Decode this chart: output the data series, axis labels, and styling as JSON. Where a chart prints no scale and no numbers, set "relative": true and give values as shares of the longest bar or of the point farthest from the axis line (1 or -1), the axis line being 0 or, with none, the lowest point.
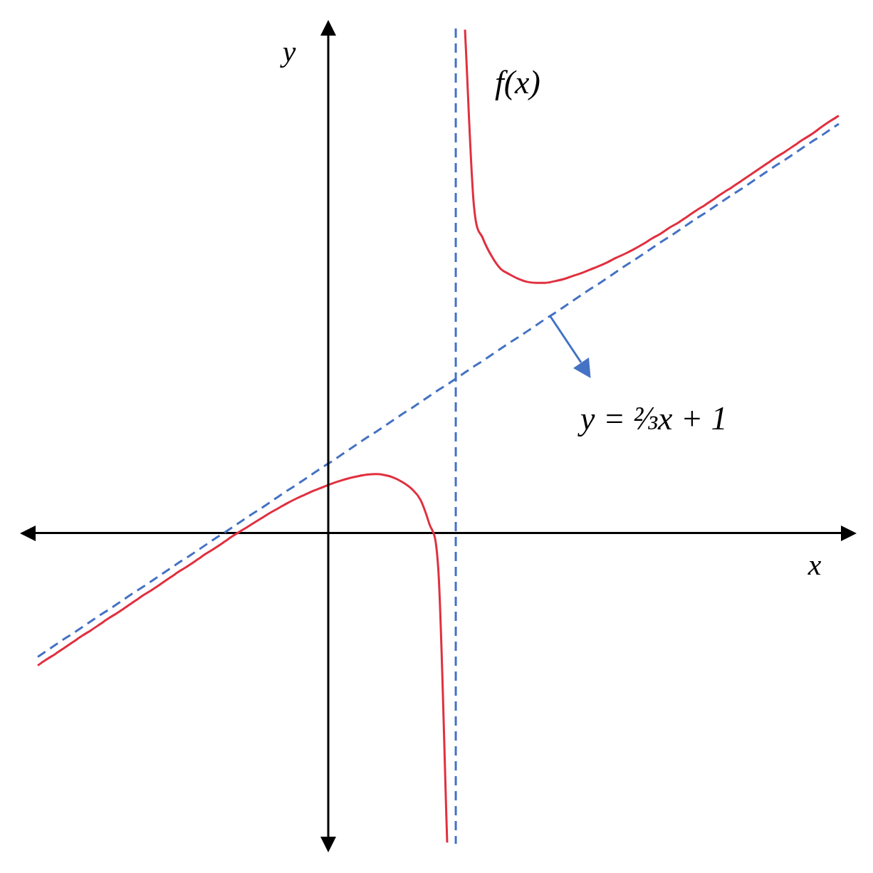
{
  "chart_data": {
    "type": "line",
    "relative": true,
    "xlabel": "x",
    "ylabel": "y",
    "legend": false,
    "tick_labels": false,
    "marker": "none",
    "annotations": [
      "y = ⅔x + 1"
    ],
    "categories": [
      null,
      null,
      null,
      null,
      null,
      null,
      null,
      null,
      null,
      null,
      null,
      null,
      null,
      null,
      null,
      null,
      null,
      null,
      null,
      null,
      null,
      null,
      null,
      null,
      null,
      null,
      null,
      null,
      null,
      null,
      null,
      null,
      null,
      null,
      null,
      null,
      null,
      null,
      null,
      null,
      null,
      null,
      null,
      null,
      null,
      null,
      null,
      null,
      null,
      null,
      null,
      null,
      null,
      null,
      null,
      null,
      null,
      null,
      null,
      null,
      null,
      null,
      null,
      null,
      null,
      null,
      null,
      null,
      null,
      null,
      null,
      null,
      null,
      null,
      null,
      null,
      null,
      null,
      null,
      null,
      null,
      null,
      null,
      null,
      null,
      null,
      null,
      null,
      null,
      null,
      null,
      null,
      null,
      null,
      null
    ],
    "series": [
      {
        "name": "f(x)",
        "color": "#e0303f",
        "values": [
          null,
          null,
          -0.263,
          -0.251,
          -0.24,
          -0.228,
          -0.216,
          -0.204,
          -0.193,
          -0.181,
          -0.169,
          -0.158,
          -0.146,
          -0.134,
          -0.122,
          -0.111,
          -0.099,
          -0.087,
          -0.075,
          -0.064,
          -0.052,
          -0.04,
          -0.029,
          -0.017,
          -0.005,
          0.006,
          0.017,
          0.028,
          0.039,
          0.049,
          0.059,
          0.068,
          0.076,
          0.084,
          0.091,
          0.098,
          0.104,
          0.109,
          0.113,
          0.116,
          0.117,
          0.115,
          0.11,
          0.101,
          0.088,
          0.066,
          0.018,
          -0.071,
          -0.615,
          null,
          1.0,
          0.651,
          0.586,
          0.55,
          0.525,
          0.514,
          0.505,
          0.499,
          0.497,
          0.497,
          0.5,
          0.504,
          0.51,
          0.516,
          0.523,
          0.53,
          0.538,
          0.547,
          0.555,
          0.564,
          0.574,
          0.585,
          0.595,
          0.607,
          0.617,
          0.629,
          0.641,
          0.652,
          0.664,
          0.676,
          0.687,
          0.699,
          0.711,
          0.723,
          0.735,
          0.747,
          0.758,
          0.77,
          0.782,
          0.793,
          0.806,
          0.818,
          0.829,
          null,
          null
        ]
      },
      {
        "color": "#4472c4",
        "line_style": "dashed",
        "values": [
          null,
          null,
          -0.246,
          -0.234,
          -0.222,
          -0.21,
          -0.199,
          -0.187,
          -0.175,
          -0.163,
          -0.152,
          -0.14,
          -0.128,
          -0.116,
          -0.105,
          -0.093,
          -0.081,
          -0.069,
          -0.057,
          -0.046,
          -0.034,
          -0.022,
          -0.01,
          0.001,
          0.013,
          0.025,
          0.037,
          0.048,
          0.06,
          0.072,
          0.084,
          0.095,
          0.107,
          0.119,
          0.131,
          0.142,
          0.154,
          0.166,
          0.178,
          0.19,
          0.201,
          0.213,
          0.225,
          0.237,
          0.248,
          0.26,
          0.272,
          0.284,
          0.295,
          0.307,
          0.319,
          0.331,
          0.342,
          0.354,
          0.366,
          0.378,
          0.389,
          0.401,
          0.413,
          0.425,
          0.436,
          0.448,
          0.46,
          0.472,
          0.484,
          0.495,
          0.507,
          0.519,
          0.531,
          0.542,
          0.554,
          0.566,
          0.578,
          0.589,
          0.601,
          0.613,
          0.625,
          0.636,
          0.648,
          0.66,
          0.672,
          0.683,
          0.695,
          0.707,
          0.719,
          0.731,
          0.742,
          0.754,
          0.766,
          0.778,
          0.789,
          0.801,
          0.813,
          null,
          null
        ]
      }
    ]
  }
}
